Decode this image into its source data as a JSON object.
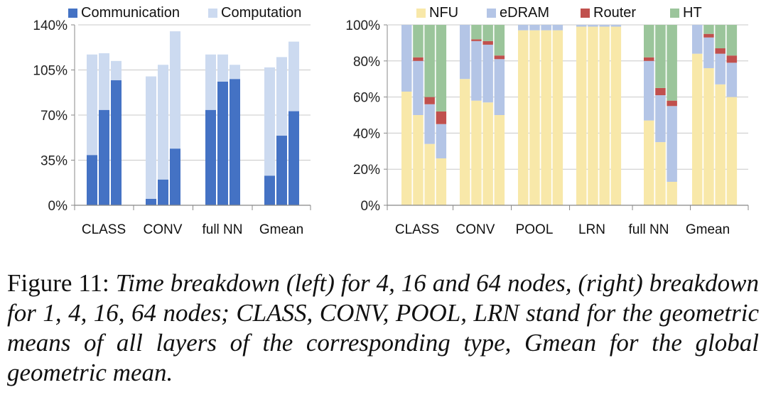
{
  "chart_data": [
    {
      "type": "bar",
      "stacked": true,
      "title": "",
      "xlabel": "",
      "ylabel": "",
      "categories": [
        "CLASS",
        "CONV",
        "full NN",
        "Gmean"
      ],
      "groups_per_category": 3,
      "ylim": [
        0,
        140
      ],
      "yticks": [
        "0%",
        "35%",
        "70%",
        "105%",
        "140%"
      ],
      "legend_position": "top",
      "series": [
        {
          "name": "Communication",
          "color": "#4472c4",
          "values": [
            [
              39,
              74,
              97
            ],
            [
              5,
              20,
              44
            ],
            [
              74,
              96,
              98
            ],
            [
              23,
              54,
              73
            ]
          ]
        },
        {
          "name": "Computation",
          "color": "#ccdaf0",
          "values": [
            [
              78,
              44,
              15
            ],
            [
              95,
              89,
              91
            ],
            [
              43,
              21,
              11
            ],
            [
              84,
              61,
              54
            ]
          ]
        }
      ]
    },
    {
      "type": "bar",
      "stacked": true,
      "title": "",
      "xlabel": "",
      "ylabel": "",
      "categories": [
        "CLASS",
        "CONV",
        "POOL",
        "LRN",
        "full NN",
        "Gmean"
      ],
      "groups_per_category": 4,
      "ylim": [
        0,
        100
      ],
      "yticks": [
        "0%",
        "20%",
        "40%",
        "60%",
        "80%",
        "100%"
      ],
      "legend_position": "top",
      "series": [
        {
          "name": "NFU",
          "color": "#f8e8a9",
          "values": [
            [
              63,
              50,
              34,
              26
            ],
            [
              70,
              58,
              57,
              50
            ],
            [
              97,
              97,
              97,
              97
            ],
            [
              99,
              99,
              99,
              99
            ],
            [
              47,
              35,
              13,
              null
            ],
            [
              84,
              76,
              67,
              60
            ]
          ]
        },
        {
          "name": "eDRAM",
          "color": "#b4c5e6",
          "values": [
            [
              37,
              30,
              22,
              19
            ],
            [
              30,
              33,
              32,
              31
            ],
            [
              3,
              3,
              3,
              3
            ],
            [
              1,
              1,
              1,
              1
            ],
            [
              33,
              26,
              42,
              null
            ],
            [
              16,
              17,
              17,
              19
            ]
          ]
        },
        {
          "name": "Router",
          "color": "#c0504d",
          "values": [
            [
              0,
              2,
              4,
              7
            ],
            [
              0,
              1,
              2,
              2
            ],
            [
              0,
              0,
              0,
              0
            ],
            [
              0,
              0,
              0,
              0
            ],
            [
              2,
              4,
              3,
              null
            ],
            [
              0,
              2,
              3,
              4
            ]
          ]
        },
        {
          "name": "HT",
          "color": "#9bc59b",
          "values": [
            [
              0,
              18,
              40,
              48
            ],
            [
              0,
              8,
              9,
              17
            ],
            [
              0,
              0,
              0,
              0
            ],
            [
              0,
              0,
              0,
              0
            ],
            [
              18,
              35,
              42,
              null
            ],
            [
              0,
              5,
              13,
              17
            ]
          ]
        }
      ]
    }
  ],
  "caption": {
    "lead": "Figure 11: ",
    "body": "Time breakdown (left) for 4, 16 and 64 nodes, (right) breakdown for 1, 4, 16, 64 nodes; CLASS, CONV, POOL, LRN stand for the geometric means of all layers of the corresponding type, Gmean for the global geometric mean."
  }
}
